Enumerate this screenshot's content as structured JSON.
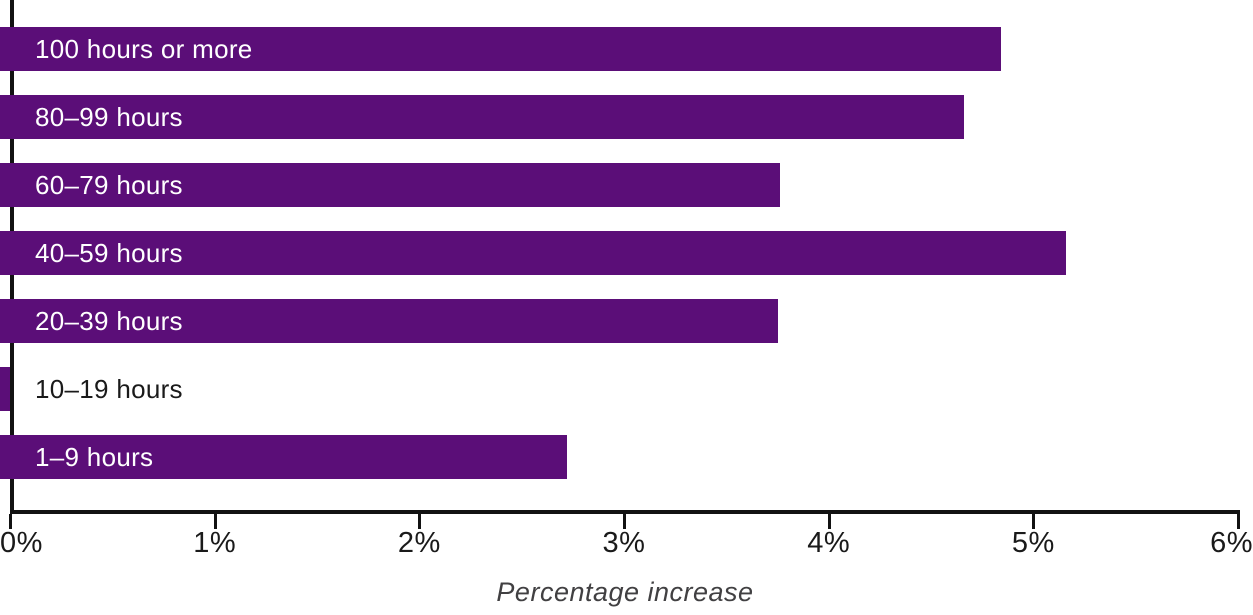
{
  "chart_data": {
    "type": "bar",
    "orientation": "horizontal",
    "xlabel": "Percentage increase",
    "xlim": [
      0,
      6
    ],
    "x_ticks": [
      "0%",
      "1%",
      "2%",
      "3%",
      "4%",
      "5%",
      "6%"
    ],
    "categories": [
      "100 hours or more",
      "80–99 hours",
      "60–79 hours",
      "40–59 hours",
      "20–39 hours",
      "10–19 hours",
      "1–9 hours"
    ],
    "values": [
      4.84,
      4.66,
      3.76,
      5.16,
      3.75,
      0,
      2.72
    ],
    "grid": false,
    "legend": false,
    "colors": {
      "bar": "#5b0e78",
      "axis": "#121212",
      "tick_label": "#1a1a1a",
      "bar_label_inside": "#ffffff",
      "bar_label_outside": "#1a1a1a",
      "xlabel": "#414042",
      "background": "#ffffff"
    }
  }
}
